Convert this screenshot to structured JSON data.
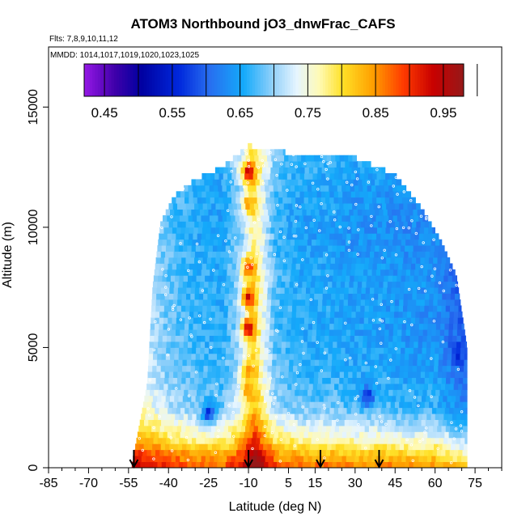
{
  "chart_data": {
    "type": "heatmap",
    "title": "ATOM3 Northbound jO3_dnwFrac_CAFS",
    "flights_label": "Flts: 7,8,9,10,11,12",
    "dates_label": "MMDD: 1014,1017,1019,1020,1023,1025",
    "xlabel": "Latitude (deg N)",
    "ylabel": "Altitude (m)",
    "xlim": [
      -85,
      85
    ],
    "ylim": [
      0,
      17500
    ],
    "x_ticks": [
      -85,
      -70,
      -55,
      -40,
      -25,
      -10,
      5,
      15,
      30,
      45,
      60,
      75
    ],
    "x_tick_labels": [
      "-85",
      "-70",
      "-55",
      "-40",
      "-25",
      "-10",
      "5",
      "15",
      "30",
      "45",
      "60",
      "75"
    ],
    "y_ticks": [
      0,
      5000,
      10000,
      15000
    ],
    "y_tick_labels": [
      "0",
      "5000",
      "10000",
      "15000"
    ],
    "colorbar": {
      "range": [
        0.42,
        0.98
      ],
      "ticks": [
        0.45,
        0.55,
        0.65,
        0.75,
        0.85,
        0.95
      ],
      "tick_labels": [
        "0.45",
        "0.55",
        "0.65",
        "0.75",
        "0.85",
        "0.95"
      ]
    },
    "arrow_latitudes": [
      -53,
      -10,
      17,
      39
    ],
    "coverage_envelope": [
      {
        "lat": -54,
        "alt_max": 0
      },
      {
        "lat": -48,
        "alt_max": 3500
      },
      {
        "lat": -46,
        "alt_max": 7500
      },
      {
        "lat": -43,
        "alt_max": 10200
      },
      {
        "lat": -38,
        "alt_max": 11300
      },
      {
        "lat": -30,
        "alt_max": 12000
      },
      {
        "lat": -20,
        "alt_max": 12500
      },
      {
        "lat": -10,
        "alt_max": 13400
      },
      {
        "lat": 10,
        "alt_max": 13000
      },
      {
        "lat": 30,
        "alt_max": 12900
      },
      {
        "lat": 45,
        "alt_max": 12200
      },
      {
        "lat": 55,
        "alt_max": 10800
      },
      {
        "lat": 62,
        "alt_max": 9500
      },
      {
        "lat": 68,
        "alt_max": 8000
      },
      {
        "lat": 72,
        "alt_max": 5000
      },
      {
        "lat": 72,
        "alt_max": 0
      }
    ],
    "lat_profile": {
      "lat": [
        -50,
        -40,
        -30,
        -20,
        -12,
        -8,
        0,
        10,
        20,
        30,
        40,
        50,
        60,
        70
      ],
      "value": [
        0.73,
        0.69,
        0.67,
        0.66,
        0.72,
        0.8,
        0.68,
        0.66,
        0.66,
        0.65,
        0.65,
        0.64,
        0.64,
        0.6
      ]
    },
    "alt_profile": {
      "alt": [
        0,
        500,
        1000,
        1500,
        2500,
        4000,
        6000,
        8000,
        10000,
        12000,
        13500
      ],
      "value": [
        0.88,
        0.84,
        0.79,
        0.75,
        0.69,
        0.67,
        0.66,
        0.66,
        0.65,
        0.66,
        0.68
      ]
    },
    "hot_spots": [
      {
        "lat": -10,
        "alt": 12300,
        "value": 0.93
      },
      {
        "lat": -10,
        "alt": 11000,
        "value": 0.84
      },
      {
        "lat": -10,
        "alt": 8300,
        "value": 0.9
      },
      {
        "lat": -10,
        "alt": 7100,
        "value": 0.94
      },
      {
        "lat": -10,
        "alt": 5800,
        "value": 0.95
      },
      {
        "lat": -10,
        "alt": 4000,
        "value": 0.86
      },
      {
        "lat": -10,
        "alt": 3200,
        "value": 0.84
      },
      {
        "lat": -25,
        "alt": 2300,
        "value": 0.57
      },
      {
        "lat": 35,
        "alt": 3000,
        "value": 0.57
      },
      {
        "lat": 68,
        "alt": 4800,
        "value": 0.55
      }
    ]
  }
}
